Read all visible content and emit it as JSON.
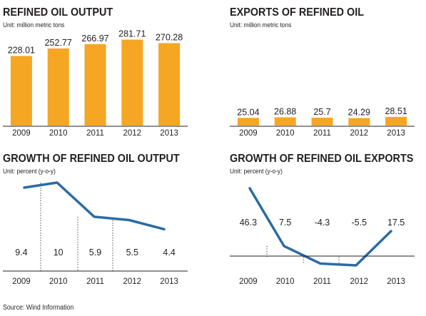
{
  "colors": {
    "bar": "#f5a623",
    "line": "#2b6ca3",
    "axis": "#231f20",
    "text": "#231f20"
  },
  "source": "Source: Wind Information",
  "chart_data": [
    {
      "type": "bar",
      "title": "REFINED OIL OUTPUT",
      "subtitle": "Unit: million metric tons",
      "categories": [
        "2009",
        "2010",
        "2011",
        "2012",
        "2013"
      ],
      "values": [
        228.01,
        252.77,
        266.97,
        281.71,
        270.28
      ],
      "labels": [
        "228.01",
        "252.77",
        "266.97",
        "281.71",
        "270.28"
      ],
      "ylim": [
        0,
        290
      ]
    },
    {
      "type": "bar",
      "title": "EXPORTS OF REFINED OIL",
      "subtitle": "Unit: million metric tons",
      "categories": [
        "2009",
        "2010",
        "2011",
        "2012",
        "2013"
      ],
      "values": [
        25.04,
        26.88,
        25.7,
        24.29,
        28.51
      ],
      "labels": [
        "25.04",
        "26.88",
        "25.7",
        "24.29",
        "28.51"
      ],
      "ylim": [
        0,
        290
      ]
    },
    {
      "type": "line",
      "title": "GROWTH OF REFINED OIL OUTPUT",
      "subtitle": "Unit: percent (y-o-y)",
      "categories": [
        "2009",
        "2010",
        "2011",
        "2012",
        "2013"
      ],
      "values": [
        9.4,
        10,
        5.9,
        5.5,
        4.4
      ],
      "labels": [
        "9.4",
        "10",
        "5.9",
        "5.5",
        "4.4"
      ],
      "ylim": [
        0,
        12.4
      ]
    },
    {
      "type": "line",
      "title": "GROWTH OF REFINED OIL EXPORTS",
      "subtitle": "Unit: percent (y-o-y)",
      "categories": [
        "2009",
        "2010",
        "2011",
        "2012",
        "2013"
      ],
      "values": [
        46.3,
        7.5,
        -4.3,
        -5.5,
        17.5
      ],
      "labels": [
        "46.3",
        "7.5",
        "-4.3",
        "-5.5",
        "17.5"
      ],
      "ylim": [
        -12,
        50
      ]
    }
  ]
}
